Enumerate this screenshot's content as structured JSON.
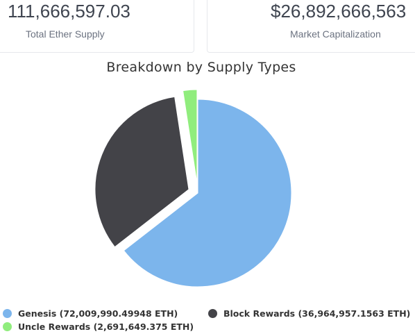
{
  "stats": {
    "total_supply_value": "111,666,597.03",
    "total_supply_label": "Total Ether Supply",
    "market_cap_value": "$26,892,666,563",
    "market_cap_label": "Market Capitalization"
  },
  "chart_data": {
    "type": "pie",
    "title": "Breakdown by Supply Types",
    "series": [
      {
        "name": "Genesis",
        "value": 72009990.49948,
        "unit": "ETH",
        "color": "#7cb5ec",
        "legend_label": "Genesis (72,009,990.49948 ETH)"
      },
      {
        "name": "Block Rewards",
        "value": 36964957.1563,
        "unit": "ETH",
        "color": "#434348",
        "legend_label": "Block Rewards (36,964,957.1563 ETH)"
      },
      {
        "name": "Uncle Rewards",
        "value": 2691649.375,
        "unit": "ETH",
        "color": "#90ed7d",
        "legend_label": "Uncle Rewards (2,691,649.375 ETH)"
      }
    ],
    "sliced": [
      "Block Rewards",
      "Uncle Rewards"
    ],
    "legend_position": "bottom"
  }
}
